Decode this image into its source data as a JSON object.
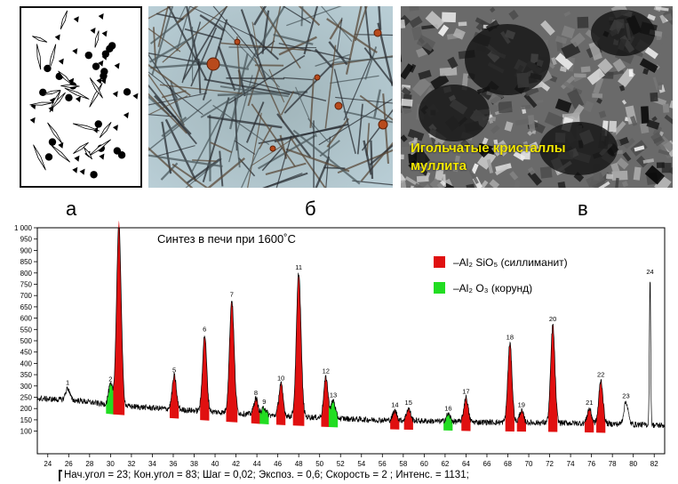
{
  "panel_labels": {
    "a": "а",
    "b": "б",
    "c": "в"
  },
  "panel_c_caption": "Игольчатые кристаллы муллита",
  "chart_data": {
    "type": "line",
    "title": "Синтез в печи при 1600˚С",
    "xlim": [
      23,
      83
    ],
    "ylim": [
      0,
      1000
    ],
    "x_ticks": [
      24,
      26,
      28,
      30,
      32,
      34,
      36,
      38,
      40,
      42,
      44,
      46,
      48,
      50,
      52,
      54,
      56,
      58,
      60,
      62,
      64,
      66,
      68,
      70,
      72,
      74,
      76,
      78,
      80,
      82
    ],
    "y_ticks": [
      100,
      150,
      200,
      250,
      300,
      350,
      400,
      450,
      500,
      550,
      600,
      650,
      700,
      750,
      800,
      850,
      900,
      950,
      1000
    ],
    "y_tick_labels": [
      "100",
      "150",
      "200",
      "250",
      "300",
      "350",
      "400",
      "450",
      "500",
      "550",
      "600",
      "650",
      "700",
      "750",
      "800",
      "850",
      "900",
      "950",
      "1 000"
    ],
    "legend": [
      {
        "text": "–Al₂ SiO₅ (силлиманит)",
        "color": "#e01010"
      },
      {
        "text": "–Al₂ O₃ (корунд)",
        "color": "#22dd22"
      }
    ],
    "legend_position": "top-right",
    "baseline": [
      [
        23,
        245
      ],
      [
        27,
        235
      ],
      [
        30,
        215
      ],
      [
        35,
        200
      ],
      [
        40,
        185
      ],
      [
        45,
        170
      ],
      [
        50,
        160
      ],
      [
        55,
        150
      ],
      [
        60,
        145
      ],
      [
        65,
        140
      ],
      [
        70,
        138
      ],
      [
        75,
        135
      ],
      [
        80,
        130
      ],
      [
        83,
        125
      ]
    ],
    "peaks": [
      {
        "id": "1",
        "x": 25.9,
        "y": 290,
        "phase": "none"
      },
      {
        "id": "2",
        "x": 30.0,
        "y": 305,
        "phase": "corundum"
      },
      {
        "id": "3",
        "x": 30.8,
        "y": 1020,
        "phase": "sillimanite"
      },
      {
        "id": "5",
        "x": 36.1,
        "y": 345,
        "phase": "sillimanite"
      },
      {
        "id": "6",
        "x": 39.0,
        "y": 525,
        "phase": "sillimanite"
      },
      {
        "id": "7",
        "x": 41.6,
        "y": 680,
        "phase": "sillimanite"
      },
      {
        "id": "8",
        "x": 43.9,
        "y": 245,
        "phase": "sillimanite"
      },
      {
        "id": "9",
        "x": 44.7,
        "y": 205,
        "phase": "corundum"
      },
      {
        "id": "10",
        "x": 46.3,
        "y": 310,
        "phase": "sillimanite"
      },
      {
        "id": "11",
        "x": 48.0,
        "y": 800,
        "phase": "sillimanite"
      },
      {
        "id": "12",
        "x": 50.6,
        "y": 340,
        "phase": "sillimanite"
      },
      {
        "id": "13",
        "x": 51.3,
        "y": 235,
        "phase": "corundum"
      },
      {
        "id": "14",
        "x": 57.2,
        "y": 190,
        "phase": "sillimanite"
      },
      {
        "id": "15",
        "x": 58.5,
        "y": 200,
        "phase": "sillimanite"
      },
      {
        "id": "16",
        "x": 62.3,
        "y": 175,
        "phase": "corundum"
      },
      {
        "id": "17",
        "x": 64.0,
        "y": 250,
        "phase": "sillimanite"
      },
      {
        "id": "18",
        "x": 68.2,
        "y": 490,
        "phase": "sillimanite"
      },
      {
        "id": "19",
        "x": 69.3,
        "y": 190,
        "phase": "sillimanite"
      },
      {
        "id": "20",
        "x": 72.3,
        "y": 570,
        "phase": "sillimanite"
      },
      {
        "id": "21",
        "x": 75.8,
        "y": 200,
        "phase": "sillimanite"
      },
      {
        "id": "22",
        "x": 76.9,
        "y": 325,
        "phase": "sillimanite"
      },
      {
        "id": "23",
        "x": 79.3,
        "y": 230,
        "phase": "none"
      },
      {
        "id": "24",
        "x": 81.6,
        "y": 780,
        "phase": "none"
      }
    ],
    "scan_params": "Нач.угол = 23;  Кон.угол = 83;  Шаг = 0,02;  Экспоз. = 0,6;  Скорость =   2 ;  Интенс. = 1131;"
  }
}
